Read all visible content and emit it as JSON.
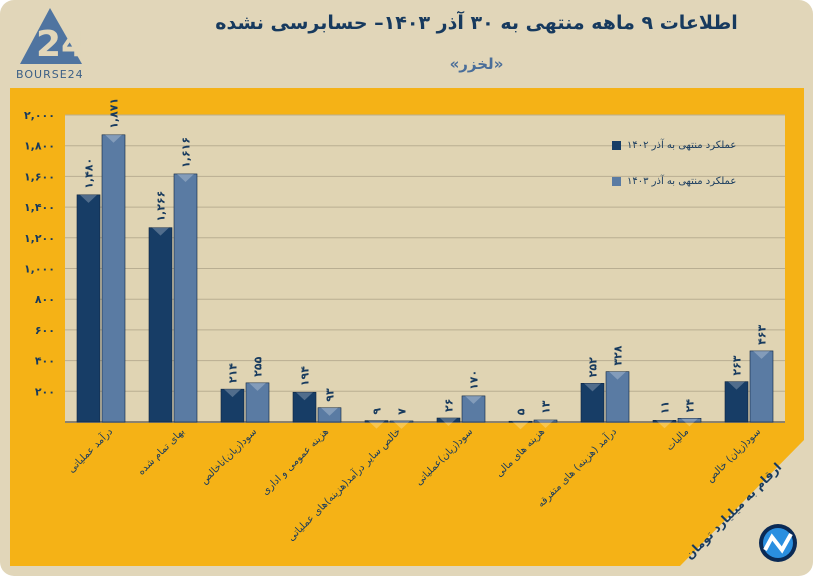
{
  "header": {
    "title": "اطلاعات ۹ ماهه منتهی به ۳۰ آذر ۱۴۰۳– حسابرسی نشده",
    "subtitle": "«لخزر»",
    "logo_text": "BOURSE24"
  },
  "footer": {
    "unit_note": "ارقام به میلیارد تومان"
  },
  "colors": {
    "frame": "#e1d6b9",
    "panel": "#f5b216",
    "plot": "#e0d4b3",
    "series1": "#173d66",
    "series2": "#5a7ba3"
  },
  "chart_data": {
    "type": "bar",
    "title": "اطلاعات ۹ ماهه منتهی به ۳۰ آذر ۱۴۰۳– حسابرسی نشده",
    "categories": [
      "درآمد عملیاتی",
      "بهای تمام شده",
      "سود(زیان)ناخالص",
      "هزینه عمومی و اداری",
      "خالص سایر درآمد(هزینه)های عملیاتی",
      "سود(زیان)عملیاتی",
      "هزینه های مالی",
      "درآمد (هزینه) های متفرقه",
      "مالیات",
      "سود(زیان) خالص"
    ],
    "series": [
      {
        "name": "عملکرد منتهی به آذر ۱۴۰۲",
        "values": [
          1480,
          1266,
          214,
          194,
          9,
          26,
          5,
          252,
          11,
          263
        ],
        "labels": [
          "۱,۴۸۰",
          "۱,۲۶۶",
          "۲۱۴",
          "۱۹۴",
          "۹",
          "۲۶",
          "۵",
          "۲۵۲",
          "۱۱",
          "۲۶۳"
        ]
      },
      {
        "name": "عملکرد منتهی به آذر ۱۴۰۳",
        "values": [
          1871,
          1616,
          255,
          93,
          7,
          170,
          13,
          328,
          24,
          463
        ],
        "labels": [
          "۱,۸۷۱",
          "۱,۶۱۶",
          "۲۵۵",
          "۹۳",
          "۷",
          "۱۷۰",
          "۱۳",
          "۳۲۸",
          "۲۴",
          "۴۶۳"
        ]
      }
    ],
    "ylim": [
      0,
      2000
    ],
    "yticks": [
      200,
      400,
      600,
      800,
      1000,
      1200,
      1400,
      1600,
      1800,
      2000
    ],
    "ytick_labels": [
      "۲۰۰",
      "۴۰۰",
      "۶۰۰",
      "۸۰۰",
      "۱,۰۰۰",
      "۱,۲۰۰",
      "۱,۴۰۰",
      "۱,۶۰۰",
      "۱,۸۰۰",
      "۲,۰۰۰"
    ],
    "grid": true,
    "legend_position": "top-right",
    "xlabel": "",
    "ylabel": ""
  }
}
